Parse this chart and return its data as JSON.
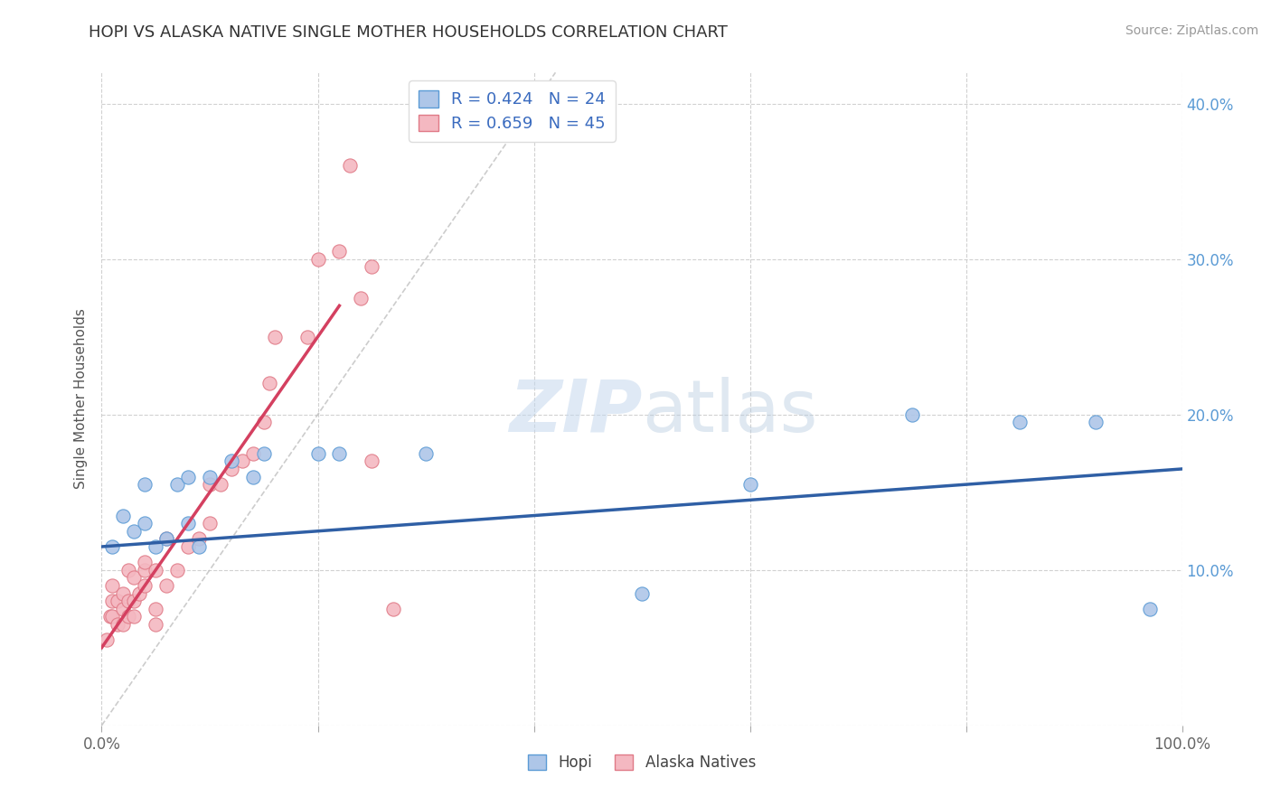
{
  "title": "HOPI VS ALASKA NATIVE SINGLE MOTHER HOUSEHOLDS CORRELATION CHART",
  "source": "Source: ZipAtlas.com",
  "ylabel": "Single Mother Households",
  "watermark": "ZIPatlas",
  "xlim": [
    0,
    1.0
  ],
  "ylim": [
    0,
    0.42
  ],
  "hopi_color": "#aec6e8",
  "hopi_edge": "#5b9bd5",
  "alaska_color": "#f4b8c1",
  "alaska_edge": "#e07a87",
  "hopi_R": 0.424,
  "hopi_N": 24,
  "alaska_R": 0.659,
  "alaska_N": 45,
  "hopi_line_color": "#2f5fa5",
  "alaska_line_color": "#d44060",
  "diagonal_color": "#c0c0c0",
  "legend_text_color": "#3a6bbf",
  "title_color": "#333333",
  "grid_color": "#cccccc",
  "hopi_scatter_x": [
    0.01,
    0.02,
    0.03,
    0.04,
    0.04,
    0.05,
    0.06,
    0.07,
    0.08,
    0.08,
    0.09,
    0.1,
    0.12,
    0.14,
    0.15,
    0.2,
    0.22,
    0.3,
    0.5,
    0.6,
    0.75,
    0.85,
    0.92,
    0.97
  ],
  "hopi_scatter_y": [
    0.115,
    0.135,
    0.125,
    0.13,
    0.155,
    0.115,
    0.12,
    0.155,
    0.16,
    0.13,
    0.115,
    0.16,
    0.17,
    0.16,
    0.175,
    0.175,
    0.175,
    0.175,
    0.085,
    0.155,
    0.2,
    0.195,
    0.195,
    0.075
  ],
  "alaska_scatter_x": [
    0.005,
    0.008,
    0.01,
    0.01,
    0.01,
    0.015,
    0.015,
    0.02,
    0.02,
    0.02,
    0.025,
    0.025,
    0.025,
    0.03,
    0.03,
    0.03,
    0.035,
    0.04,
    0.04,
    0.04,
    0.05,
    0.05,
    0.05,
    0.06,
    0.06,
    0.07,
    0.08,
    0.09,
    0.1,
    0.1,
    0.11,
    0.12,
    0.13,
    0.14,
    0.15,
    0.155,
    0.16,
    0.19,
    0.2,
    0.22,
    0.23,
    0.24,
    0.25,
    0.25,
    0.27
  ],
  "alaska_scatter_y": [
    0.055,
    0.07,
    0.07,
    0.08,
    0.09,
    0.065,
    0.08,
    0.065,
    0.075,
    0.085,
    0.07,
    0.08,
    0.1,
    0.07,
    0.08,
    0.095,
    0.085,
    0.09,
    0.1,
    0.105,
    0.065,
    0.075,
    0.1,
    0.09,
    0.12,
    0.1,
    0.115,
    0.12,
    0.13,
    0.155,
    0.155,
    0.165,
    0.17,
    0.175,
    0.195,
    0.22,
    0.25,
    0.25,
    0.3,
    0.305,
    0.36,
    0.275,
    0.295,
    0.17,
    0.075
  ],
  "alaska_line_x": [
    0.0,
    0.22
  ],
  "alaska_line_y": [
    0.05,
    0.27
  ],
  "hopi_line_x": [
    0.0,
    1.0
  ],
  "hopi_line_y": [
    0.115,
    0.165
  ]
}
